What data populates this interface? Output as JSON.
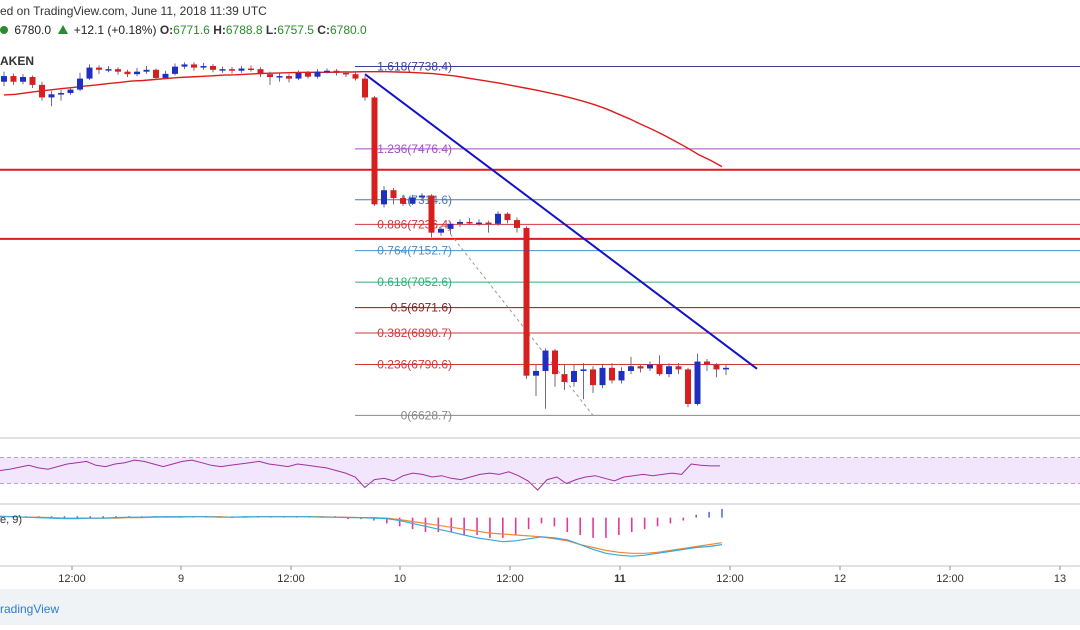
{
  "header": {
    "published": "ed on TradingView.com, June 11, 2018 11:39 UTC",
    "price": "6780.0",
    "change": "+12.1 (+0.18%)",
    "o_label": "O:",
    "o_value": "6771.6",
    "h_label": "H:",
    "h_value": "6788.8",
    "l_label": "L:",
    "l_value": "6757.5",
    "c_label": "C:",
    "c_value": "6780.0",
    "exchange": "AKEN",
    "up_icon": "triangle-up-icon",
    "status_icon": "green-dot-icon"
  },
  "chart_data": {
    "type": "candlestick",
    "price_range": [
      6560,
      7810
    ],
    "candles": [
      {
        "o": 7690,
        "c": 7708,
        "h": 7722,
        "l": 7676
      },
      {
        "o": 7708,
        "c": 7690,
        "h": 7716,
        "l": 7680
      },
      {
        "o": 7690,
        "c": 7705,
        "h": 7714,
        "l": 7682
      },
      {
        "o": 7705,
        "c": 7680,
        "h": 7710,
        "l": 7670
      },
      {
        "o": 7680,
        "c": 7640,
        "h": 7690,
        "l": 7630
      },
      {
        "o": 7640,
        "c": 7650,
        "h": 7660,
        "l": 7612
      },
      {
        "o": 7650,
        "c": 7654,
        "h": 7664,
        "l": 7630
      },
      {
        "o": 7654,
        "c": 7665,
        "h": 7672,
        "l": 7648
      },
      {
        "o": 7665,
        "c": 7700,
        "h": 7718,
        "l": 7660
      },
      {
        "o": 7700,
        "c": 7735,
        "h": 7745,
        "l": 7695
      },
      {
        "o": 7735,
        "c": 7728,
        "h": 7742,
        "l": 7715
      },
      {
        "o": 7728,
        "c": 7730,
        "h": 7740,
        "l": 7720
      },
      {
        "o": 7730,
        "c": 7722,
        "h": 7736,
        "l": 7712
      },
      {
        "o": 7722,
        "c": 7714,
        "h": 7728,
        "l": 7705
      },
      {
        "o": 7714,
        "c": 7722,
        "h": 7734,
        "l": 7708
      },
      {
        "o": 7722,
        "c": 7728,
        "h": 7740,
        "l": 7715
      },
      {
        "o": 7728,
        "c": 7702,
        "h": 7732,
        "l": 7695
      },
      {
        "o": 7702,
        "c": 7715,
        "h": 7725,
        "l": 7698
      },
      {
        "o": 7715,
        "c": 7738,
        "h": 7748,
        "l": 7710
      },
      {
        "o": 7738,
        "c": 7745,
        "h": 7752,
        "l": 7730
      },
      {
        "o": 7745,
        "c": 7735,
        "h": 7752,
        "l": 7725
      },
      {
        "o": 7735,
        "c": 7740,
        "h": 7750,
        "l": 7728
      },
      {
        "o": 7740,
        "c": 7728,
        "h": 7746,
        "l": 7720
      },
      {
        "o": 7728,
        "c": 7730,
        "h": 7738,
        "l": 7718
      },
      {
        "o": 7730,
        "c": 7725,
        "h": 7737,
        "l": 7716
      },
      {
        "o": 7725,
        "c": 7732,
        "h": 7740,
        "l": 7718
      },
      {
        "o": 7732,
        "c": 7730,
        "h": 7742,
        "l": 7722
      },
      {
        "o": 7730,
        "c": 7714,
        "h": 7736,
        "l": 7705
      },
      {
        "o": 7714,
        "c": 7705,
        "h": 7722,
        "l": 7680
      },
      {
        "o": 7705,
        "c": 7708,
        "h": 7716,
        "l": 7690
      },
      {
        "o": 7708,
        "c": 7700,
        "h": 7714,
        "l": 7688
      },
      {
        "o": 7700,
        "c": 7718,
        "h": 7726,
        "l": 7695
      },
      {
        "o": 7718,
        "c": 7706,
        "h": 7724,
        "l": 7700
      },
      {
        "o": 7706,
        "c": 7722,
        "h": 7730,
        "l": 7700
      },
      {
        "o": 7722,
        "c": 7725,
        "h": 7732,
        "l": 7716
      },
      {
        "o": 7725,
        "c": 7718,
        "h": 7730,
        "l": 7710
      },
      {
        "o": 7718,
        "c": 7714,
        "h": 7724,
        "l": 7705
      },
      {
        "o": 7714,
        "c": 7700,
        "h": 7720,
        "l": 7694
      },
      {
        "o": 7700,
        "c": 7640,
        "h": 7708,
        "l": 7630
      },
      {
        "o": 7640,
        "c": 7300,
        "h": 7645,
        "l": 7295
      },
      {
        "o": 7300,
        "c": 7345,
        "h": 7358,
        "l": 7290
      },
      {
        "o": 7345,
        "c": 7320,
        "h": 7352,
        "l": 7300
      },
      {
        "o": 7320,
        "c": 7302,
        "h": 7330,
        "l": 7295
      },
      {
        "o": 7302,
        "c": 7322,
        "h": 7330,
        "l": 7298
      },
      {
        "o": 7322,
        "c": 7328,
        "h": 7336,
        "l": 7310
      },
      {
        "o": 7328,
        "c": 7210,
        "h": 7332,
        "l": 7195
      },
      {
        "o": 7210,
        "c": 7222,
        "h": 7232,
        "l": 7200
      },
      {
        "o": 7222,
        "c": 7238,
        "h": 7245,
        "l": 7205
      },
      {
        "o": 7238,
        "c": 7244,
        "h": 7252,
        "l": 7228
      },
      {
        "o": 7244,
        "c": 7240,
        "h": 7256,
        "l": 7234
      },
      {
        "o": 7240,
        "c": 7242,
        "h": 7252,
        "l": 7232
      },
      {
        "o": 7242,
        "c": 7238,
        "h": 7248,
        "l": 7210
      },
      {
        "o": 7238,
        "c": 7270,
        "h": 7278,
        "l": 7232
      },
      {
        "o": 7270,
        "c": 7250,
        "h": 7275,
        "l": 7240
      },
      {
        "o": 7250,
        "c": 7225,
        "h": 7258,
        "l": 7210
      },
      {
        "o": 7225,
        "c": 6755,
        "h": 7230,
        "l": 6745
      },
      {
        "o": 6755,
        "c": 6770,
        "h": 6790,
        "l": 6690
      },
      {
        "o": 6770,
        "c": 6835,
        "h": 6842,
        "l": 6650
      },
      {
        "o": 6835,
        "c": 6760,
        "h": 6840,
        "l": 6720
      },
      {
        "o": 6760,
        "c": 6735,
        "h": 6790,
        "l": 6710
      },
      {
        "o": 6735,
        "c": 6770,
        "h": 6790,
        "l": 6720
      },
      {
        "o": 6770,
        "c": 6775,
        "h": 6795,
        "l": 6680
      },
      {
        "o": 6775,
        "c": 6725,
        "h": 6785,
        "l": 6700
      },
      {
        "o": 6725,
        "c": 6780,
        "h": 6790,
        "l": 6715
      },
      {
        "o": 6780,
        "c": 6740,
        "h": 6795,
        "l": 6730
      },
      {
        "o": 6740,
        "c": 6770,
        "h": 6782,
        "l": 6730
      },
      {
        "o": 6770,
        "c": 6785,
        "h": 6815,
        "l": 6760
      },
      {
        "o": 6785,
        "c": 6778,
        "h": 6792,
        "l": 6765
      },
      {
        "o": 6778,
        "c": 6790,
        "h": 6800,
        "l": 6770
      },
      {
        "o": 6790,
        "c": 6760,
        "h": 6820,
        "l": 6755
      },
      {
        "o": 6760,
        "c": 6785,
        "h": 6795,
        "l": 6750
      },
      {
        "o": 6785,
        "c": 6775,
        "h": 6795,
        "l": 6760
      },
      {
        "o": 6775,
        "c": 6665,
        "h": 6780,
        "l": 6655
      },
      {
        "o": 6665,
        "c": 6800,
        "h": 6825,
        "l": 6660
      },
      {
        "o": 6800,
        "c": 6790,
        "h": 6808,
        "l": 6770
      },
      {
        "o": 6790,
        "c": 6775,
        "h": 6795,
        "l": 6750
      },
      {
        "o": 6775,
        "c": 6780,
        "h": 6789,
        "l": 6757
      }
    ],
    "ma_line": [
      7648,
      7650,
      7655,
      7660,
      7664,
      7668,
      7672,
      7676,
      7680,
      7684,
      7688,
      7692,
      7694,
      7697,
      7700,
      7703,
      7705,
      7707,
      7709,
      7711,
      7712,
      7714,
      7716,
      7717,
      7718,
      7719,
      7720,
      7720,
      7720,
      7721,
      7721,
      7722,
      7722,
      7722,
      7721,
      7720,
      7718,
      7716,
      7712,
      7708,
      7702,
      7696,
      7690,
      7684,
      7677,
      7670,
      7663,
      7655,
      7647,
      7638,
      7628,
      7617,
      7604,
      7588,
      7572,
      7555,
      7538,
      7520,
      7500,
      7480,
      7458,
      7440,
      7420
    ],
    "fib_levels": [
      {
        "ratio": "1.618",
        "price": "7738.4",
        "value": 7738.4,
        "color": "#3b3f9e"
      },
      {
        "ratio": "1.236",
        "price": "7476.4",
        "value": 7476.4,
        "color": "#a64ac9"
      },
      {
        "ratio": "1",
        "price": "7314.6",
        "value": 7314.6,
        "color": "#4a79a8"
      },
      {
        "ratio": "0.886",
        "price": "7236.4",
        "value": 7236.4,
        "color": "#d1373b"
      },
      {
        "ratio": "0.764",
        "price": "7152.7",
        "value": 7152.7,
        "color": "#4a90c9"
      },
      {
        "ratio": "0.618",
        "price": "7052.6",
        "value": 7052.6,
        "color": "#2ab07a"
      },
      {
        "ratio": "0.5",
        "price": "6971.6",
        "value": 6971.6,
        "color": "#8a1a1a"
      },
      {
        "ratio": "0.382",
        "price": "6890.7",
        "value": 6890.7,
        "color": "#d1373b"
      },
      {
        "ratio": "0.236",
        "price": "6790.6",
        "value": 6790.6,
        "color": "#d1373b"
      },
      {
        "ratio": "0",
        "price": "6628.7",
        "value": 6628.7,
        "color": "#888888"
      }
    ],
    "horizontal_lines": [
      7410,
      7190
    ],
    "trendline": {
      "start": 7714,
      "end": 6777,
      "color": "#1212c8"
    },
    "x_ticks": [
      {
        "label": "12:00",
        "bold": false
      },
      {
        "label": "9",
        "bold": false
      },
      {
        "label": "12:00",
        "bold": false
      },
      {
        "label": "10",
        "bold": false
      },
      {
        "label": "12:00",
        "bold": false
      },
      {
        "label": "11",
        "bold": true
      },
      {
        "label": "12:00",
        "bold": false
      },
      {
        "label": "12",
        "bold": false
      },
      {
        "label": "12:00",
        "bold": false
      },
      {
        "label": "13",
        "bold": false
      }
    ],
    "rsi": {
      "range": [
        0,
        100
      ],
      "band": [
        30,
        70
      ],
      "values": [
        50,
        52,
        55,
        58,
        54,
        52,
        56,
        60,
        62,
        64,
        58,
        56,
        60,
        62,
        66,
        64,
        60,
        56,
        60,
        64,
        66,
        62,
        58,
        56,
        58,
        60,
        62,
        64,
        60,
        58,
        56,
        60,
        58,
        56,
        54,
        50,
        46,
        40,
        24,
        36,
        38,
        34,
        42,
        46,
        44,
        40,
        42,
        38,
        36,
        40,
        44,
        46,
        44,
        48,
        42,
        34,
        20,
        36,
        40,
        30,
        36,
        40,
        42,
        38,
        34,
        40,
        42,
        44,
        42,
        44,
        46,
        44,
        60,
        58,
        57,
        57
      ]
    },
    "macd": {
      "label": "e, 9)",
      "macd_line": [
        3,
        2,
        1,
        0,
        -1,
        -2,
        -2,
        -1,
        -1,
        0,
        1,
        1,
        2,
        2,
        2,
        2,
        2,
        1,
        1,
        2,
        2,
        2,
        2,
        2,
        2,
        1,
        1,
        0,
        0,
        -1,
        -2,
        -6,
        -12,
        -18,
        -24,
        -30,
        -36,
        -42,
        -46,
        -50,
        -48,
        -44,
        -40,
        -42,
        -46,
        -56,
        -66,
        -74,
        -78,
        -80,
        -78,
        -74,
        -70,
        -66,
        -62,
        -60,
        -56
      ],
      "signal_line": [
        2,
        2,
        1,
        1,
        0,
        -1,
        -1,
        -1,
        -1,
        -1,
        0,
        0,
        1,
        1,
        1,
        2,
        2,
        2,
        1,
        1,
        2,
        2,
        2,
        2,
        2,
        2,
        1,
        1,
        0,
        0,
        -1,
        -4,
        -8,
        -12,
        -16,
        -20,
        -24,
        -28,
        -32,
        -34,
        -36,
        -38,
        -40,
        -44,
        -48,
        -56,
        -62,
        -68,
        -72,
        -74,
        -74,
        -72,
        -68,
        -64,
        -60,
        -56,
        -52
      ],
      "histogram": [
        1,
        1,
        1,
        1,
        1,
        1,
        1,
        1,
        1,
        1,
        1,
        1,
        1,
        1,
        1,
        1,
        1,
        1,
        1,
        1,
        1,
        1,
        1,
        1,
        1,
        1,
        1,
        -1,
        -1,
        -2,
        -4,
        -6,
        -8,
        -10,
        -10,
        -10,
        -12,
        -12,
        -14,
        -14,
        -12,
        -8,
        -4,
        -6,
        -10,
        -12,
        -14,
        -14,
        -12,
        -10,
        -8,
        -6,
        -4,
        -2,
        2,
        4,
        6
      ],
      "range": [
        -90,
        20
      ]
    }
  },
  "footer": {
    "brand": "radingView"
  }
}
